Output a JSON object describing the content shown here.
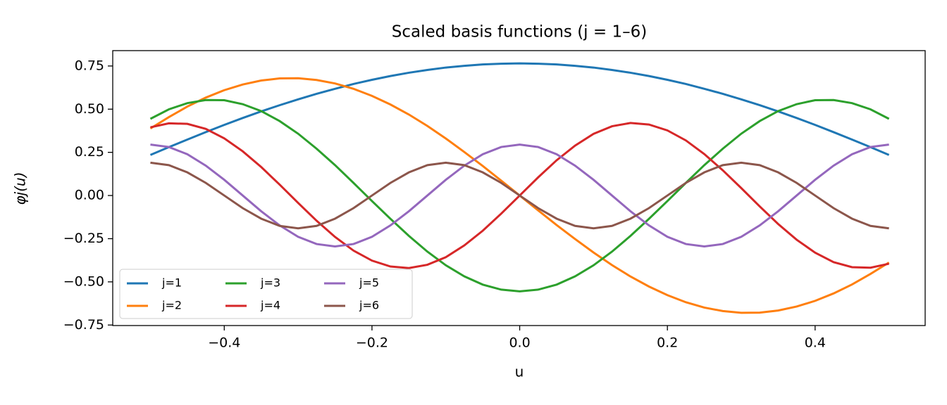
{
  "chart_data": {
    "type": "line",
    "title": "Scaled basis functions (j = 1–6)",
    "xlabel": "u",
    "ylabel": "φj(u)",
    "x": [
      -0.5,
      -0.475,
      -0.45,
      -0.425,
      -0.4,
      -0.375,
      -0.35,
      -0.325,
      -0.3,
      -0.275,
      -0.25,
      -0.225,
      -0.2,
      -0.175,
      -0.15,
      -0.125,
      -0.1,
      -0.075,
      -0.05,
      -0.025,
      0,
      0.025,
      0.05,
      0.075,
      0.1,
      0.125,
      0.15,
      0.175,
      0.2,
      0.225,
      0.25,
      0.275,
      0.3,
      0.325,
      0.35,
      0.375,
      0.4,
      0.425,
      0.45,
      0.475,
      0.5
    ],
    "series": [
      {
        "name": "j=1",
        "color": "#1f77b4",
        "values": [
          0.235,
          0.28,
          0.324,
          0.367,
          0.409,
          0.449,
          0.487,
          0.523,
          0.557,
          0.589,
          0.618,
          0.646,
          0.67,
          0.692,
          0.711,
          0.727,
          0.741,
          0.751,
          0.759,
          0.763,
          0.765,
          0.763,
          0.759,
          0.751,
          0.741,
          0.727,
          0.711,
          0.692,
          0.67,
          0.646,
          0.618,
          0.589,
          0.557,
          0.523,
          0.487,
          0.449,
          0.409,
          0.367,
          0.324,
          0.28,
          0.235
        ]
      },
      {
        "name": "j=2",
        "color": "#ff7f0e",
        "values": [
          0.388,
          0.454,
          0.515,
          0.567,
          0.61,
          0.643,
          0.666,
          0.678,
          0.679,
          0.669,
          0.649,
          0.618,
          0.577,
          0.527,
          0.469,
          0.403,
          0.33,
          0.252,
          0.171,
          0.086,
          0,
          -0.086,
          -0.171,
          -0.252,
          -0.33,
          -0.403,
          -0.469,
          -0.527,
          -0.577,
          -0.618,
          -0.649,
          -0.669,
          -0.679,
          -0.678,
          -0.666,
          -0.643,
          -0.61,
          -0.567,
          -0.515,
          -0.454,
          -0.388
        ]
      },
      {
        "name": "j=3",
        "color": "#2ca02c",
        "values": [
          0.444,
          0.499,
          0.535,
          0.553,
          0.552,
          0.529,
          0.489,
          0.431,
          0.358,
          0.271,
          0.176,
          0.073,
          -0.032,
          -0.135,
          -0.234,
          -0.325,
          -0.404,
          -0.468,
          -0.516,
          -0.545,
          -0.555,
          -0.545,
          -0.516,
          -0.468,
          -0.404,
          -0.325,
          -0.234,
          -0.135,
          -0.032,
          0.073,
          0.176,
          0.271,
          0.358,
          0.431,
          0.489,
          0.529,
          0.552,
          0.553,
          0.535,
          0.499,
          0.444
        ]
      },
      {
        "name": "j=4",
        "color": "#d62728",
        "values": [
          0.395,
          0.418,
          0.415,
          0.386,
          0.331,
          0.256,
          0.165,
          0.063,
          -0.043,
          -0.146,
          -0.24,
          -0.319,
          -0.377,
          -0.411,
          -0.42,
          -0.401,
          -0.357,
          -0.289,
          -0.204,
          -0.105,
          0,
          0.105,
          0.204,
          0.289,
          0.357,
          0.401,
          0.42,
          0.411,
          0.377,
          0.319,
          0.24,
          0.146,
          0.043,
          -0.063,
          -0.165,
          -0.256,
          -0.331,
          -0.386,
          -0.415,
          -0.418,
          -0.395
        ]
      },
      {
        "name": "j=5",
        "color": "#9467bd",
        "values": [
          0.295,
          0.281,
          0.239,
          0.173,
          0.091,
          0,
          -0.091,
          -0.173,
          -0.239,
          -0.281,
          -0.295,
          -0.281,
          -0.239,
          -0.173,
          -0.091,
          0,
          0.091,
          0.173,
          0.239,
          0.281,
          0.295,
          0.281,
          0.239,
          0.173,
          0.091,
          0,
          -0.091,
          -0.173,
          -0.239,
          -0.281,
          -0.295,
          -0.281,
          -0.239,
          -0.173,
          -0.091,
          0,
          0.091,
          0.173,
          0.239,
          0.281,
          0.295
        ]
      },
      {
        "name": "j=6",
        "color": "#8c564b",
        "values": [
          0.19,
          0.176,
          0.134,
          0.073,
          0,
          -0.073,
          -0.134,
          -0.176,
          -0.19,
          -0.176,
          -0.134,
          -0.073,
          0,
          0.073,
          0.134,
          0.176,
          0.19,
          0.176,
          0.134,
          0.073,
          0,
          -0.073,
          -0.134,
          -0.176,
          -0.19,
          -0.176,
          -0.134,
          -0.073,
          0,
          0.073,
          0.134,
          0.176,
          0.19,
          0.176,
          0.134,
          0.073,
          0,
          -0.073,
          -0.134,
          -0.176,
          -0.19
        ]
      }
    ],
    "xlim": [
      -0.551,
      0.549
    ],
    "ylim": [
      -0.753,
      0.839
    ],
    "xticks": [
      {
        "value": -0.4,
        "label": "−0.4"
      },
      {
        "value": -0.2,
        "label": "−0.2"
      },
      {
        "value": 0,
        "label": "0.0"
      },
      0.2,
      0.4
    ],
    "yticks": [
      {
        "value": -0.75,
        "label": "−0.75"
      },
      {
        "value": -0.5,
        "label": "−0.50"
      },
      {
        "value": -0.25,
        "label": "−0.25"
      },
      {
        "value": 0,
        "label": "0.00"
      },
      0.25,
      {
        "value": 0.5,
        "label": "0.50"
      },
      0.75
    ],
    "legend": "lower left",
    "legend_columns": 3
  }
}
